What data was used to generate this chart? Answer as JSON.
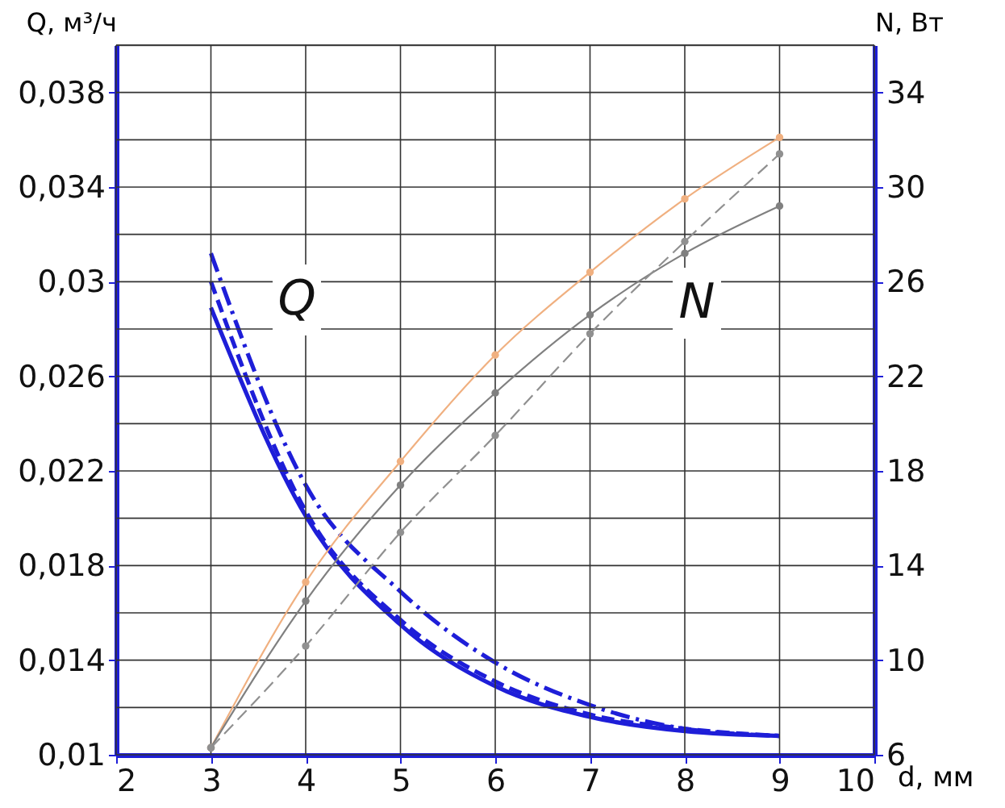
{
  "chart_data": {
    "type": "line",
    "xlabel": "d, мм",
    "ylabel": "Q, м³/ч",
    "y2label": "N, Вт",
    "xlim": [
      2,
      10
    ],
    "xticks": [
      2,
      3,
      4,
      5,
      6,
      7,
      8,
      9,
      10
    ],
    "ylim": [
      0.01,
      0.04
    ],
    "yticks": [
      {
        "value": 0.01,
        "label": "0,01"
      },
      {
        "value": 0.012,
        "label": null
      },
      {
        "value": 0.014,
        "label": "0,014"
      },
      {
        "value": 0.016,
        "label": null
      },
      {
        "value": 0.018,
        "label": "0,018"
      },
      {
        "value": 0.02,
        "label": null
      },
      {
        "value": 0.022,
        "label": "0,022"
      },
      {
        "value": 0.024,
        "label": null
      },
      {
        "value": 0.026,
        "label": "0,026"
      },
      {
        "value": 0.028,
        "label": null
      },
      {
        "value": 0.03,
        "label": "0,03"
      },
      {
        "value": 0.032,
        "label": null
      },
      {
        "value": 0.034,
        "label": "0,034"
      },
      {
        "value": 0.036,
        "label": null
      },
      {
        "value": 0.038,
        "label": "0,038"
      },
      {
        "value": 0.04,
        "label": null
      }
    ],
    "y2lim": [
      6,
      36
    ],
    "y2ticks": [
      6,
      10,
      14,
      18,
      22,
      26,
      30,
      34
    ],
    "grid": true,
    "series": [
      {
        "color": "#1e1ed8",
        "line_style": "solid",
        "marker": "none",
        "x": [
          3,
          4,
          5,
          6,
          7,
          8,
          9
        ],
        "values": [
          0.0289,
          0.0201,
          0.0155,
          0.0129,
          0.0116,
          0.011,
          0.0108
        ]
      },
      {
        "color": "#1e1ed8",
        "line_style": "dashed",
        "marker": "none",
        "x": [
          3,
          4,
          5,
          6,
          7,
          8,
          9
        ],
        "values": [
          0.03,
          0.0203,
          0.0157,
          0.0131,
          0.0117,
          0.0111,
          0.0108
        ]
      },
      {
        "color": "#1e1ed8",
        "line_style": "dashdot",
        "marker": "none",
        "x": [
          3,
          4,
          5,
          6,
          7,
          8,
          9
        ],
        "values": [
          0.0312,
          0.0214,
          0.0169,
          0.0139,
          0.0121,
          0.0111,
          0.0108
        ]
      },
      {
        "color": "#f0b080",
        "line_style": "solid",
        "marker": "circle",
        "axis": "y2",
        "x": [
          3,
          4,
          5,
          6,
          7,
          8,
          9
        ],
        "values": [
          6.3,
          13.3,
          18.4,
          22.9,
          26.4,
          29.5,
          32.1
        ]
      },
      {
        "color": "#808080",
        "line_style": "solid",
        "marker": "circle",
        "axis": "y2",
        "x": [
          3,
          4,
          5,
          6,
          7,
          8,
          9
        ],
        "values": [
          6.3,
          12.5,
          17.4,
          21.3,
          24.6,
          27.2,
          29.2
        ]
      },
      {
        "color": "#909090",
        "line_style": "dashed",
        "marker": "circle",
        "axis": "y2",
        "x": [
          3,
          4,
          5,
          6,
          7,
          8,
          9
        ],
        "values": [
          6.3,
          10.6,
          15.4,
          19.5,
          23.8,
          27.7,
          31.4
        ]
      }
    ],
    "annotations": [
      "Q",
      "N"
    ]
  }
}
